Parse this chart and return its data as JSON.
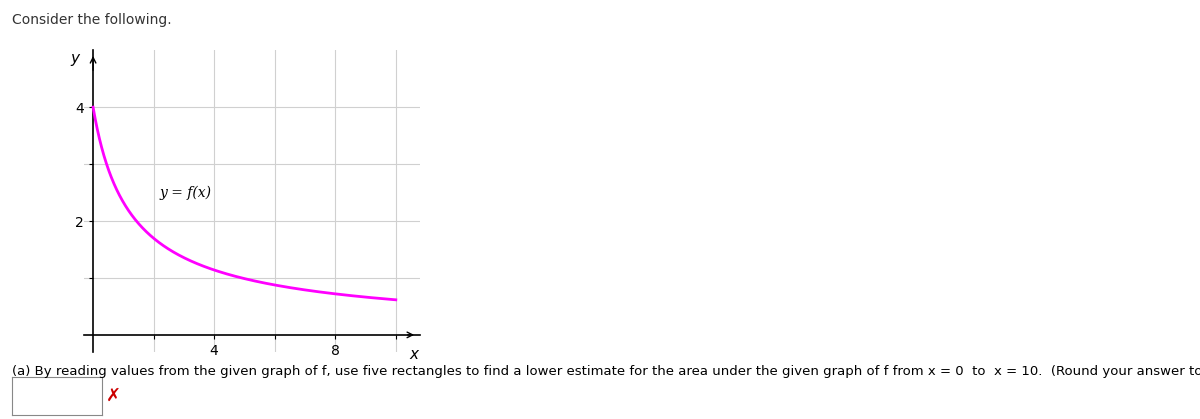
{
  "title": "Consider the following.",
  "curve_label": "y = f(x)",
  "axis_xlabel": "x",
  "axis_ylabel": "y",
  "xlim": [
    -0.3,
    10.8
  ],
  "ylim": [
    -0.3,
    5.0
  ],
  "curve_color": "#ff00ff",
  "curve_linewidth": 2.0,
  "grid_color": "#d0d0d0",
  "background_color": "#ffffff",
  "fig_background": "#ffffff",
  "caption": "(a) By reading values from the given graph of f, use five rectangles to find a lower estimate for the area under the given graph of f from x = 0  to  x = 10.  (Round your answer to one decimal place.)",
  "caption_fontsize": 9.5,
  "title_fontsize": 10,
  "label_fontsize": 11,
  "curve_label_fontsize": 10,
  "cross_color": "#cc0000",
  "tick_fontsize": 10
}
